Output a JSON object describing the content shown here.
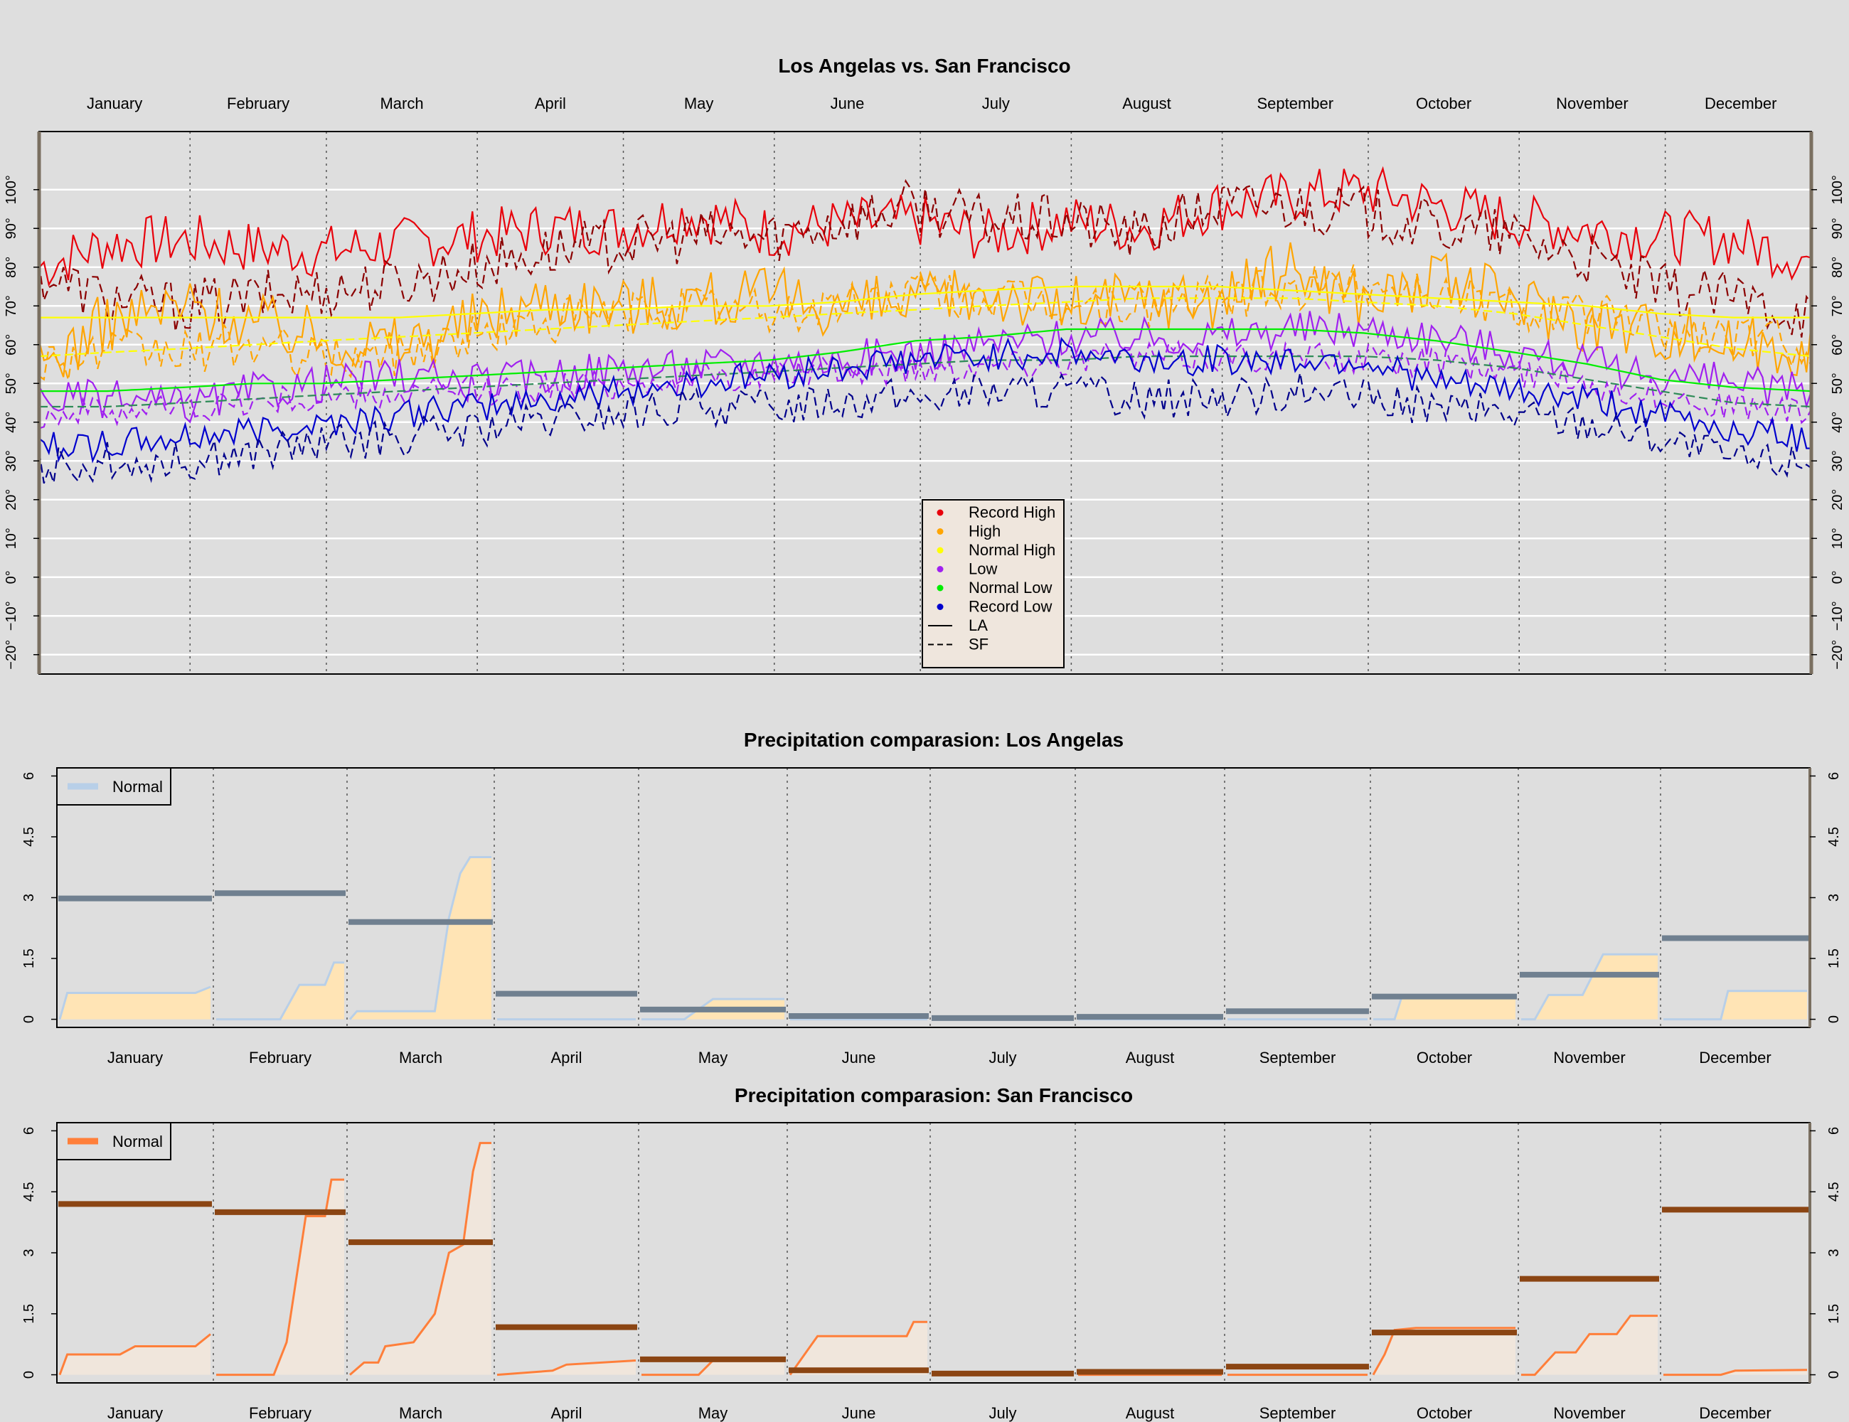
{
  "months": [
    "January",
    "February",
    "March",
    "April",
    "May",
    "June",
    "July",
    "August",
    "September",
    "October",
    "November",
    "December"
  ],
  "colors": {
    "background": "#dedede",
    "record_high": "#e8000b",
    "record_high_sf": "#8b0000",
    "high": "#ffa500",
    "normal_high": "#ffff00",
    "low": "#a020f0",
    "normal_low": "#00ee00",
    "normal_low_sf": "#2e8b57",
    "record_low": "#0000cd",
    "record_low_sf": "#00008b",
    "la_actual": "#708090",
    "la_fill": "#ffe4b5",
    "la_normal_line": "#b8cfe8",
    "sf_actual": "#8b4513",
    "sf_fill": "#f0e6dc",
    "sf_normal_line": "#ff7f3a"
  },
  "chart_data": [
    {
      "type": "line",
      "title": "Los Angelas vs. San Francisco",
      "x_ticks": [
        "January",
        "February",
        "March",
        "April",
        "May",
        "June",
        "July",
        "August",
        "September",
        "October",
        "November",
        "December"
      ],
      "y_ticks": [
        "−20°",
        "−10°",
        "0°",
        "10°",
        "20°",
        "30°",
        "40°",
        "50°",
        "60°",
        "70°",
        "80°",
        "90°",
        "100°"
      ],
      "y_tick_values": [
        -20,
        -10,
        0,
        10,
        20,
        30,
        40,
        50,
        60,
        70,
        80,
        90,
        100
      ],
      "ylim": [
        -25,
        115
      ],
      "xlim": [
        1,
        365
      ],
      "grid": "horizontal",
      "legend_position": "bottom-center",
      "legend": [
        "Record High",
        "High",
        "Normal High",
        "Low",
        "Normal Low",
        "Record Low",
        "LA",
        "SF"
      ],
      "series_anchors_x": [
        1,
        15,
        31,
        45,
        59,
        75,
        90,
        105,
        120,
        135,
        151,
        165,
        181,
        195,
        212,
        227,
        243,
        258,
        273,
        288,
        304,
        319,
        334,
        349,
        365
      ],
      "series": [
        {
          "name": "Record High",
          "city": "LA",
          "values": [
            80,
            86,
            87,
            85,
            84,
            86,
            88,
            90,
            90,
            94,
            89,
            91,
            92,
            88,
            92,
            90,
            96,
            98,
            100,
            96,
            92,
            90,
            88,
            87,
            82
          ]
        },
        {
          "name": "Record High",
          "city": "SF",
          "values": [
            78,
            72,
            70,
            72,
            74,
            76,
            80,
            84,
            86,
            88,
            88,
            92,
            96,
            92,
            92,
            88,
            96,
            96,
            94,
            90,
            88,
            82,
            74,
            72,
            68
          ]
        },
        {
          "name": "High",
          "city": "LA",
          "values": [
            54,
            66,
            70,
            66,
            62,
            60,
            66,
            72,
            70,
            72,
            72,
            70,
            70,
            74,
            70,
            72,
            72,
            80,
            72,
            76,
            72,
            66,
            64,
            60,
            60
          ]
        },
        {
          "name": "High",
          "city": "SF",
          "values": [
            56,
            58,
            58,
            60,
            56,
            58,
            62,
            66,
            68,
            70,
            68,
            70,
            74,
            72,
            70,
            70,
            72,
            74,
            76,
            74,
            70,
            68,
            64,
            62,
            60
          ]
        },
        {
          "name": "Normal High",
          "city": "LA",
          "values": [
            67,
            67,
            67,
            67,
            67,
            67,
            68,
            69,
            69,
            70,
            70,
            71,
            73,
            74,
            75,
            75,
            75,
            74,
            73,
            72,
            71,
            70,
            68,
            67,
            67
          ]
        },
        {
          "name": "Normal High",
          "city": "SF",
          "values": [
            57,
            58,
            59,
            60,
            61,
            62,
            63,
            64,
            65,
            66,
            67,
            68,
            69,
            70,
            71,
            72,
            72,
            72,
            71,
            70,
            68,
            65,
            62,
            59,
            57
          ]
        },
        {
          "name": "Low",
          "city": "LA",
          "values": [
            46,
            46,
            44,
            48,
            50,
            52,
            50,
            52,
            54,
            54,
            56,
            56,
            58,
            60,
            62,
            62,
            62,
            64,
            64,
            62,
            58,
            55,
            52,
            50,
            48
          ]
        },
        {
          "name": "Low",
          "city": "SF",
          "values": [
            42,
            43,
            44,
            45,
            46,
            47,
            48,
            49,
            50,
            51,
            52,
            53,
            54,
            55,
            56,
            57,
            57,
            57,
            56,
            55,
            53,
            50,
            47,
            44,
            42
          ]
        },
        {
          "name": "Normal Low",
          "city": "LA",
          "values": [
            48,
            48,
            49,
            50,
            50,
            51,
            52,
            53,
            54,
            55,
            56,
            58,
            61,
            62,
            64,
            64,
            64,
            64,
            63,
            61,
            58,
            55,
            51,
            49,
            48
          ]
        },
        {
          "name": "Normal Low",
          "city": "SF",
          "values": [
            44,
            44,
            45,
            46,
            47,
            48,
            49,
            50,
            51,
            52,
            53,
            54,
            55,
            56,
            56,
            57,
            57,
            57,
            57,
            56,
            54,
            51,
            48,
            45,
            44
          ]
        },
        {
          "name": "Record Low",
          "city": "LA",
          "values": [
            34,
            34,
            36,
            38,
            40,
            42,
            44,
            46,
            48,
            50,
            52,
            54,
            56,
            57,
            58,
            56,
            56,
            56,
            56,
            50,
            48,
            46,
            42,
            38,
            36
          ]
        },
        {
          "name": "Record Low",
          "city": "SF",
          "values": [
            28,
            30,
            30,
            32,
            34,
            36,
            38,
            40,
            42,
            44,
            44,
            46,
            46,
            48,
            48,
            46,
            46,
            48,
            46,
            44,
            42,
            40,
            36,
            30,
            30
          ]
        }
      ]
    },
    {
      "type": "area",
      "title": "Precipitation comparasion: Los Angelas",
      "x_ticks": [
        "January",
        "February",
        "March",
        "April",
        "May",
        "June",
        "July",
        "August",
        "September",
        "October",
        "November",
        "December"
      ],
      "y_ticks": [
        "0",
        "1.5",
        "3",
        "4.5",
        "6"
      ],
      "ylim": [
        -0.2,
        6.2
      ],
      "legend": [
        "Normal"
      ],
      "legend_position": "top-left",
      "monthly_normal": [
        2.98,
        3.11,
        2.4,
        0.63,
        0.24,
        0.08,
        0.03,
        0.06,
        0.2,
        0.56,
        1.1,
        2.0
      ],
      "monthly_cumulative_actual": [
        [
          [
            0,
            0
          ],
          [
            0.05,
            0.65
          ],
          [
            0.9,
            0.65
          ],
          [
            1.0,
            0.8
          ]
        ],
        [
          [
            0,
            0
          ],
          [
            0.5,
            0
          ],
          [
            0.65,
            0.85
          ],
          [
            0.85,
            0.85
          ],
          [
            0.92,
            1.4
          ],
          [
            1.0,
            1.4
          ]
        ],
        [
          [
            0,
            0
          ],
          [
            0.05,
            0.2
          ],
          [
            0.6,
            0.2
          ],
          [
            0.7,
            2.5
          ],
          [
            0.78,
            3.6
          ],
          [
            0.85,
            4.0
          ],
          [
            1.0,
            4.0
          ]
        ],
        [
          [
            0,
            0
          ],
          [
            1.0,
            0
          ]
        ],
        [
          [
            0,
            0
          ],
          [
            0.3,
            0
          ],
          [
            0.5,
            0.5
          ],
          [
            1.0,
            0.5
          ]
        ],
        [
          [
            0,
            0
          ],
          [
            1.0,
            0
          ]
        ],
        [
          [
            0,
            0
          ],
          [
            1.0,
            0
          ]
        ],
        [
          [
            0,
            0
          ],
          [
            1.0,
            0
          ]
        ],
        [
          [
            0,
            0
          ],
          [
            1.0,
            0
          ]
        ],
        [
          [
            0,
            0
          ],
          [
            0.15,
            0
          ],
          [
            0.2,
            0.55
          ],
          [
            1.0,
            0.55
          ]
        ],
        [
          [
            0,
            0
          ],
          [
            0.1,
            0
          ],
          [
            0.2,
            0.6
          ],
          [
            0.45,
            0.6
          ],
          [
            0.6,
            1.6
          ],
          [
            1.0,
            1.6
          ]
        ],
        [
          [
            0,
            0
          ],
          [
            0.4,
            0
          ],
          [
            0.45,
            0.7
          ],
          [
            1.0,
            0.7
          ]
        ]
      ]
    },
    {
      "type": "area",
      "title": "Precipitation comparasion: San Francisco",
      "x_ticks": [
        "January",
        "February",
        "March",
        "April",
        "May",
        "June",
        "July",
        "August",
        "September",
        "October",
        "November",
        "December"
      ],
      "y_ticks": [
        "0",
        "1.5",
        "3",
        "4.5",
        "6"
      ],
      "ylim": [
        -0.2,
        6.2
      ],
      "legend": [
        "Normal"
      ],
      "legend_position": "top-left",
      "monthly_normal": [
        4.2,
        4.0,
        3.26,
        1.17,
        0.38,
        0.11,
        0.03,
        0.07,
        0.2,
        1.04,
        2.36,
        4.06
      ],
      "monthly_cumulative_actual": [
        [
          [
            0,
            0
          ],
          [
            0.05,
            0.5
          ],
          [
            0.4,
            0.5
          ],
          [
            0.5,
            0.7
          ],
          [
            0.9,
            0.7
          ],
          [
            1.0,
            1.0
          ]
        ],
        [
          [
            0,
            0
          ],
          [
            0.45,
            0
          ],
          [
            0.55,
            0.8
          ],
          [
            0.7,
            3.9
          ],
          [
            0.85,
            3.9
          ],
          [
            0.9,
            4.8
          ],
          [
            1.0,
            4.8
          ]
        ],
        [
          [
            0,
            0
          ],
          [
            0.1,
            0.3
          ],
          [
            0.2,
            0.3
          ],
          [
            0.25,
            0.7
          ],
          [
            0.45,
            0.8
          ],
          [
            0.6,
            1.5
          ],
          [
            0.7,
            3.0
          ],
          [
            0.8,
            3.2
          ],
          [
            0.87,
            5.0
          ],
          [
            0.92,
            5.7
          ],
          [
            1.0,
            5.7
          ]
        ],
        [
          [
            0,
            0
          ],
          [
            0.4,
            0.1
          ],
          [
            0.5,
            0.25
          ],
          [
            1.0,
            0.35
          ]
        ],
        [
          [
            0,
            0
          ],
          [
            0.4,
            0
          ],
          [
            0.5,
            0.35
          ],
          [
            1.0,
            0.35
          ]
        ],
        [
          [
            0,
            0
          ],
          [
            0.2,
            0.95
          ],
          [
            0.85,
            0.95
          ],
          [
            0.9,
            1.3
          ],
          [
            1.0,
            1.3
          ]
        ],
        [
          [
            0,
            0
          ],
          [
            1.0,
            0
          ]
        ],
        [
          [
            0,
            0
          ],
          [
            1.0,
            0
          ]
        ],
        [
          [
            0,
            0
          ],
          [
            1.0,
            0
          ]
        ],
        [
          [
            0,
            0
          ],
          [
            0.08,
            0.5
          ],
          [
            0.15,
            1.1
          ],
          [
            0.3,
            1.15
          ],
          [
            1.0,
            1.15
          ]
        ],
        [
          [
            0,
            0
          ],
          [
            0.1,
            0
          ],
          [
            0.25,
            0.55
          ],
          [
            0.4,
            0.55
          ],
          [
            0.5,
            1.0
          ],
          [
            0.7,
            1.0
          ],
          [
            0.8,
            1.45
          ],
          [
            1.0,
            1.45
          ]
        ],
        [
          [
            0,
            0
          ],
          [
            0.4,
            0
          ],
          [
            0.5,
            0.1
          ],
          [
            1.0,
            0.12
          ]
        ]
      ]
    }
  ]
}
